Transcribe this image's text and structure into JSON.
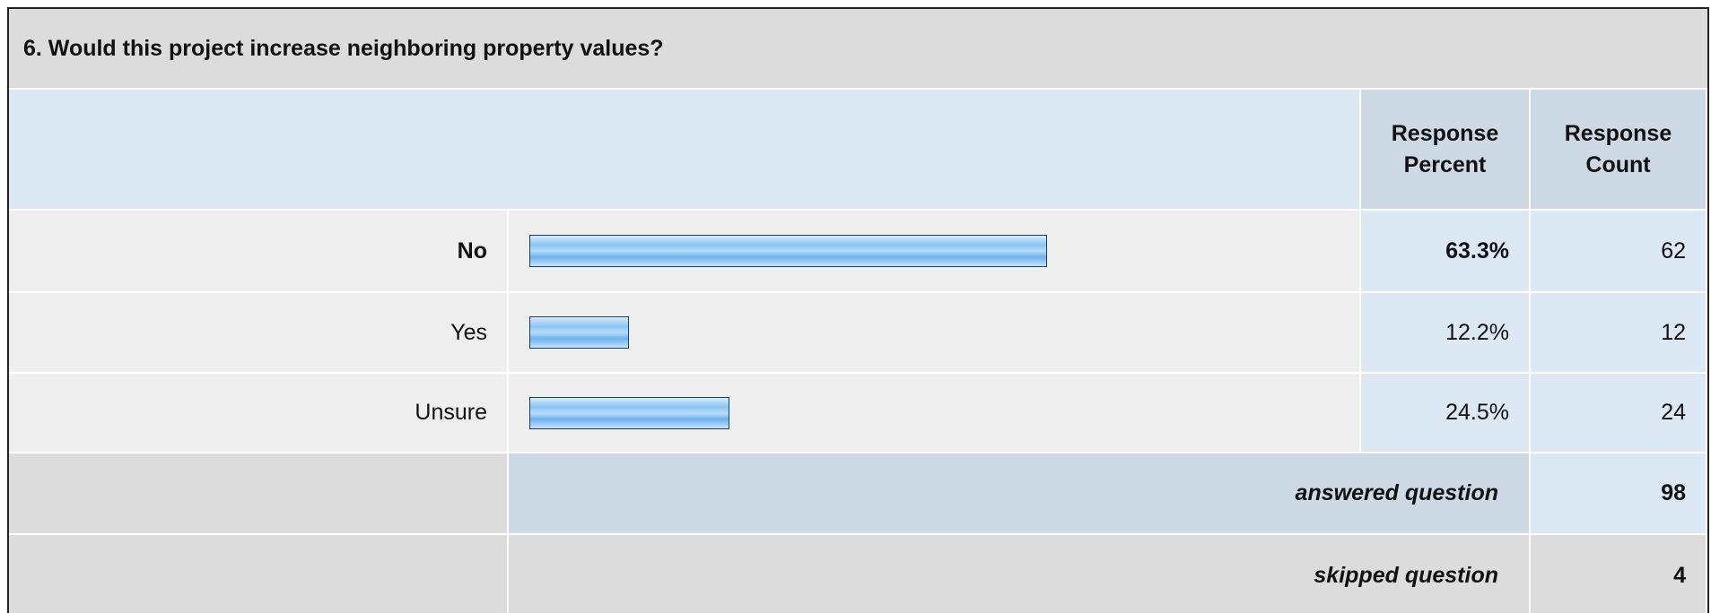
{
  "chart_data": {
    "type": "bar",
    "title": "6. Would this project increase neighboring property values?",
    "columns": [
      "Response Percent",
      "Response Count"
    ],
    "categories": [
      "No",
      "Yes",
      "Unsure"
    ],
    "values": [
      63.3,
      12.2,
      24.5
    ],
    "value_labels": [
      "63.3%",
      "12.2%",
      "24.5%"
    ],
    "counts": [
      62,
      12,
      24
    ],
    "xlim": [
      0,
      100
    ],
    "color": "#9ccbf5",
    "answered": {
      "label": "answered question",
      "value": 98
    },
    "skipped": {
      "label": "skipped question",
      "value": 4
    }
  }
}
